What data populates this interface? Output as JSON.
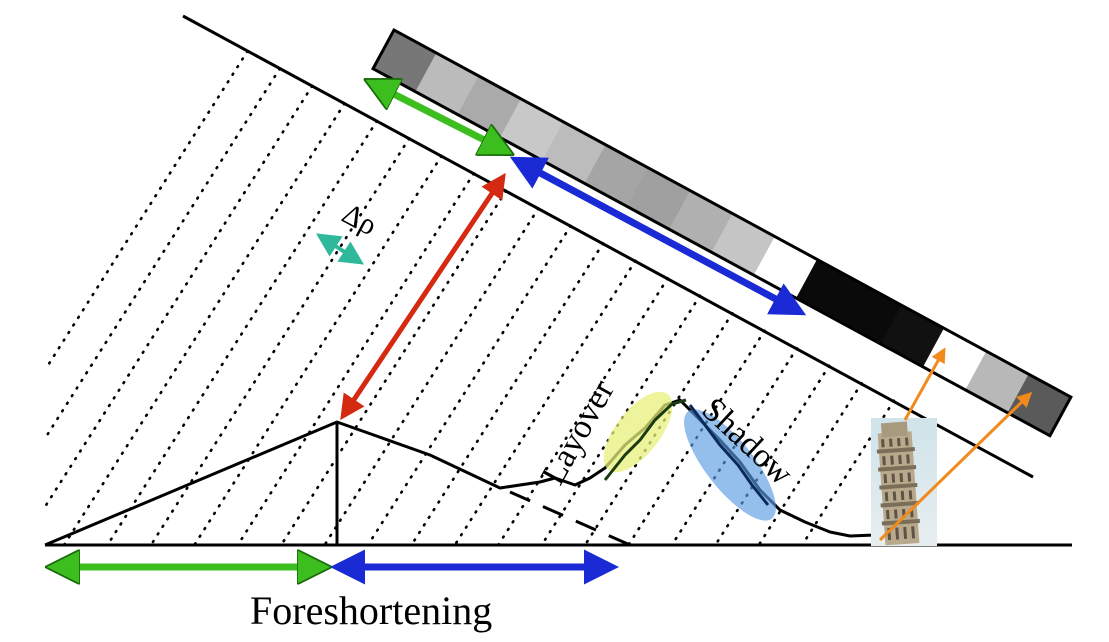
{
  "labels": {
    "foreshortening": "Foreshortening",
    "layover": "Layover",
    "shadow": "Shadow",
    "delta_rho": "Δρ"
  },
  "colors": {
    "green_arrow": "#3cbf1e",
    "blue_arrow": "#1a2bd6",
    "red_arrow": "#d42a12",
    "orange_arrow": "#f08a1c",
    "teal_arrow": "#2fb89a",
    "layover_highlight": "#e8f07a",
    "shadow_highlight": "#5b9be0"
  },
  "image_strip": {
    "cell_shades": [
      "#777777",
      "#bbbbbb",
      "#aaaaaa",
      "#c8c8c8",
      "#bcbcbc",
      "#a5a5a5",
      "#a0a0a0",
      "#b0b0b0",
      "#c5c5c5",
      "#ffffff",
      "#0a0a0a",
      "#0a0a0a",
      "#111111",
      "#ffffff",
      "#b8b8b8",
      "#5a5a5a"
    ]
  },
  "icons": {
    "tower": "leaning-tower-icon"
  }
}
